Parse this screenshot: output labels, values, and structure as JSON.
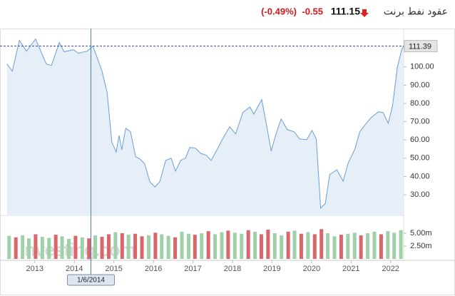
{
  "chart_data": {
    "type": "area",
    "title": "عقود نفط برنت",
    "price": "111.15",
    "change": "-0.55",
    "change_percent": "(-0.49%)",
    "watermark": "Investing.com",
    "xlim": [
      2012.3,
      2022.33
    ],
    "xticks": [
      2013,
      2014,
      2015,
      2016,
      2017,
      2018,
      2019,
      2020,
      2021,
      2022
    ],
    "ylim": [
      18.7,
      121
    ],
    "yticks": [
      {
        "value": 30,
        "label": "30.00"
      },
      {
        "value": 40,
        "label": "40.00"
      },
      {
        "value": 50,
        "label": "50.00"
      },
      {
        "value": 60,
        "label": "60.00"
      },
      {
        "value": 70,
        "label": "70.00"
      },
      {
        "value": 80,
        "label": "80.00"
      },
      {
        "value": 90,
        "label": "90.00"
      },
      {
        "value": 100,
        "label": "100.00"
      }
    ],
    "last_price": 111.39,
    "crosshair": {
      "x": 2014.42,
      "label": "1/6/2014"
    },
    "series": [
      {
        "color": "#6a9fd3",
        "fill": "#e6eef7",
        "x": [
          2012.3,
          2012.43,
          2012.61,
          2012.79,
          2013.02,
          2013.29,
          2013.42,
          2013.62,
          2013.74,
          2013.98,
          2014.1,
          2014.32,
          2014.47,
          2014.57,
          2014.7,
          2014.83,
          2014.95,
          2015.06,
          2015.13,
          2015.2,
          2015.3,
          2015.42,
          2015.55,
          2015.66,
          2015.78,
          2015.91,
          2016.04,
          2016.16,
          2016.31,
          2016.45,
          2016.56,
          2016.69,
          2016.81,
          2016.92,
          2017.07,
          2017.19,
          2017.34,
          2017.46,
          2017.61,
          2017.75,
          2017.93,
          2018.08,
          2018.26,
          2018.44,
          2018.54,
          2018.74,
          2018.85,
          2018.98,
          2019.09,
          2019.23,
          2019.39,
          2019.56,
          2019.7,
          2019.88,
          2020.01,
          2020.12,
          2020.23,
          2020.35,
          2020.46,
          2020.64,
          2020.8,
          2020.93,
          2021.09,
          2021.22,
          2021.36,
          2021.51,
          2021.69,
          2021.81,
          2021.94,
          2022.05,
          2022.17,
          2022.28,
          2022.33
        ],
        "values": [
          101.6,
          97.7,
          114.5,
          108.6,
          115.3,
          101.6,
          100.8,
          113.3,
          108.3,
          109.4,
          107.5,
          108.6,
          111.4,
          105.5,
          97.7,
          86,
          58.6,
          53.5,
          62.5,
          54.7,
          66.4,
          64.5,
          50.8,
          49.6,
          46.9,
          37.1,
          34.3,
          37.1,
          48.8,
          50,
          43,
          48.8,
          50,
          55.9,
          55.5,
          52.7,
          51.6,
          48.8,
          54.7,
          60.5,
          67.2,
          63.3,
          75,
          78.1,
          74.2,
          82.1,
          69.5,
          53.9,
          62.5,
          71.5,
          65.6,
          64.5,
          60.5,
          60.2,
          65.2,
          60.5,
          22.6,
          25.3,
          41,
          43.7,
          37.5,
          47.6,
          54.7,
          64.5,
          68.4,
          72.3,
          75.4,
          75,
          69.1,
          78.9,
          99.7,
          109.4,
          111.4
        ]
      }
    ],
    "volume": {
      "ylim": [
        0,
        7.5
      ],
      "yticks": [
        {
          "value": 5,
          "label": "5.00m"
        },
        {
          "value": 2.5,
          "label": "2.50m"
        }
      ],
      "up_color": "#9fd1a9",
      "down_color": "#d9666a",
      "x": [
        2012.35,
        2012.52,
        2012.69,
        2012.85,
        2013.02,
        2013.19,
        2013.36,
        2013.53,
        2013.69,
        2013.86,
        2014.03,
        2014.2,
        2014.37,
        2014.53,
        2014.7,
        2014.87,
        2015.04,
        2015.21,
        2015.37,
        2015.54,
        2015.71,
        2015.88,
        2016.05,
        2016.21,
        2016.38,
        2016.55,
        2016.72,
        2016.89,
        2017.05,
        2017.22,
        2017.39,
        2017.56,
        2017.73,
        2017.89,
        2018.06,
        2018.23,
        2018.4,
        2018.57,
        2018.73,
        2018.9,
        2019.07,
        2019.24,
        2019.41,
        2019.57,
        2019.74,
        2019.91,
        2020.08,
        2020.25,
        2020.41,
        2020.58,
        2020.75,
        2020.92,
        2021.09,
        2021.25,
        2021.42,
        2021.59,
        2021.76,
        2021.93,
        2022.09,
        2022.26
      ],
      "values": [
        4.5,
        4.2,
        4.6,
        4.0,
        4.8,
        4.3,
        4.1,
        4.7,
        4.4,
        3.9,
        4.5,
        4.2,
        4.0,
        4.6,
        4.3,
        4.8,
        5.2,
        5.0,
        4.7,
        4.9,
        4.4,
        4.6,
        5.1,
        4.8,
        4.5,
        4.2,
        5.3,
        4.9,
        4.7,
        5.0,
        5.4,
        4.8,
        5.2,
        5.5,
        5.1,
        4.9,
        5.6,
        5.3,
        4.8,
        5.7,
        5.0,
        4.6,
        5.3,
        5.5,
        4.9,
        5.2,
        4.8,
        5.8,
        5.0,
        4.4,
        4.7,
        4.9,
        5.1,
        4.6,
        5.0,
        5.3,
        4.8,
        5.4,
        5.1,
        5.6
      ],
      "up": [
        true,
        false,
        true,
        true,
        false,
        true,
        true,
        false,
        true,
        true,
        false,
        true,
        false,
        true,
        false,
        false,
        true,
        false,
        true,
        false,
        false,
        true,
        false,
        true,
        true,
        false,
        true,
        true,
        false,
        true,
        false,
        true,
        true,
        false,
        true,
        true,
        false,
        true,
        false,
        false,
        true,
        true,
        false,
        true,
        false,
        true,
        false,
        false,
        true,
        true,
        false,
        true,
        true,
        false,
        true,
        true,
        false,
        true,
        true,
        true
      ]
    }
  }
}
